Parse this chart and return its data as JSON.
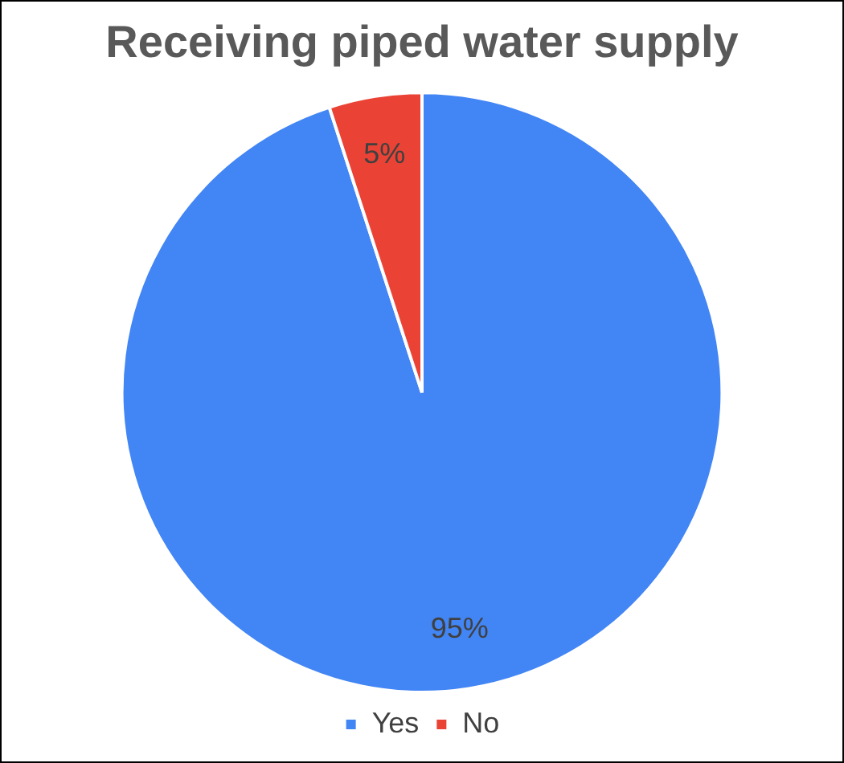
{
  "chart_data": {
    "type": "pie",
    "title": "Receiving piped water supply",
    "categories": [
      "Yes",
      "No"
    ],
    "values": [
      95,
      5
    ],
    "colors": [
      "#4285f4",
      "#ea4335"
    ],
    "value_labels": [
      "95%",
      "5%"
    ],
    "legend": "bottom"
  }
}
